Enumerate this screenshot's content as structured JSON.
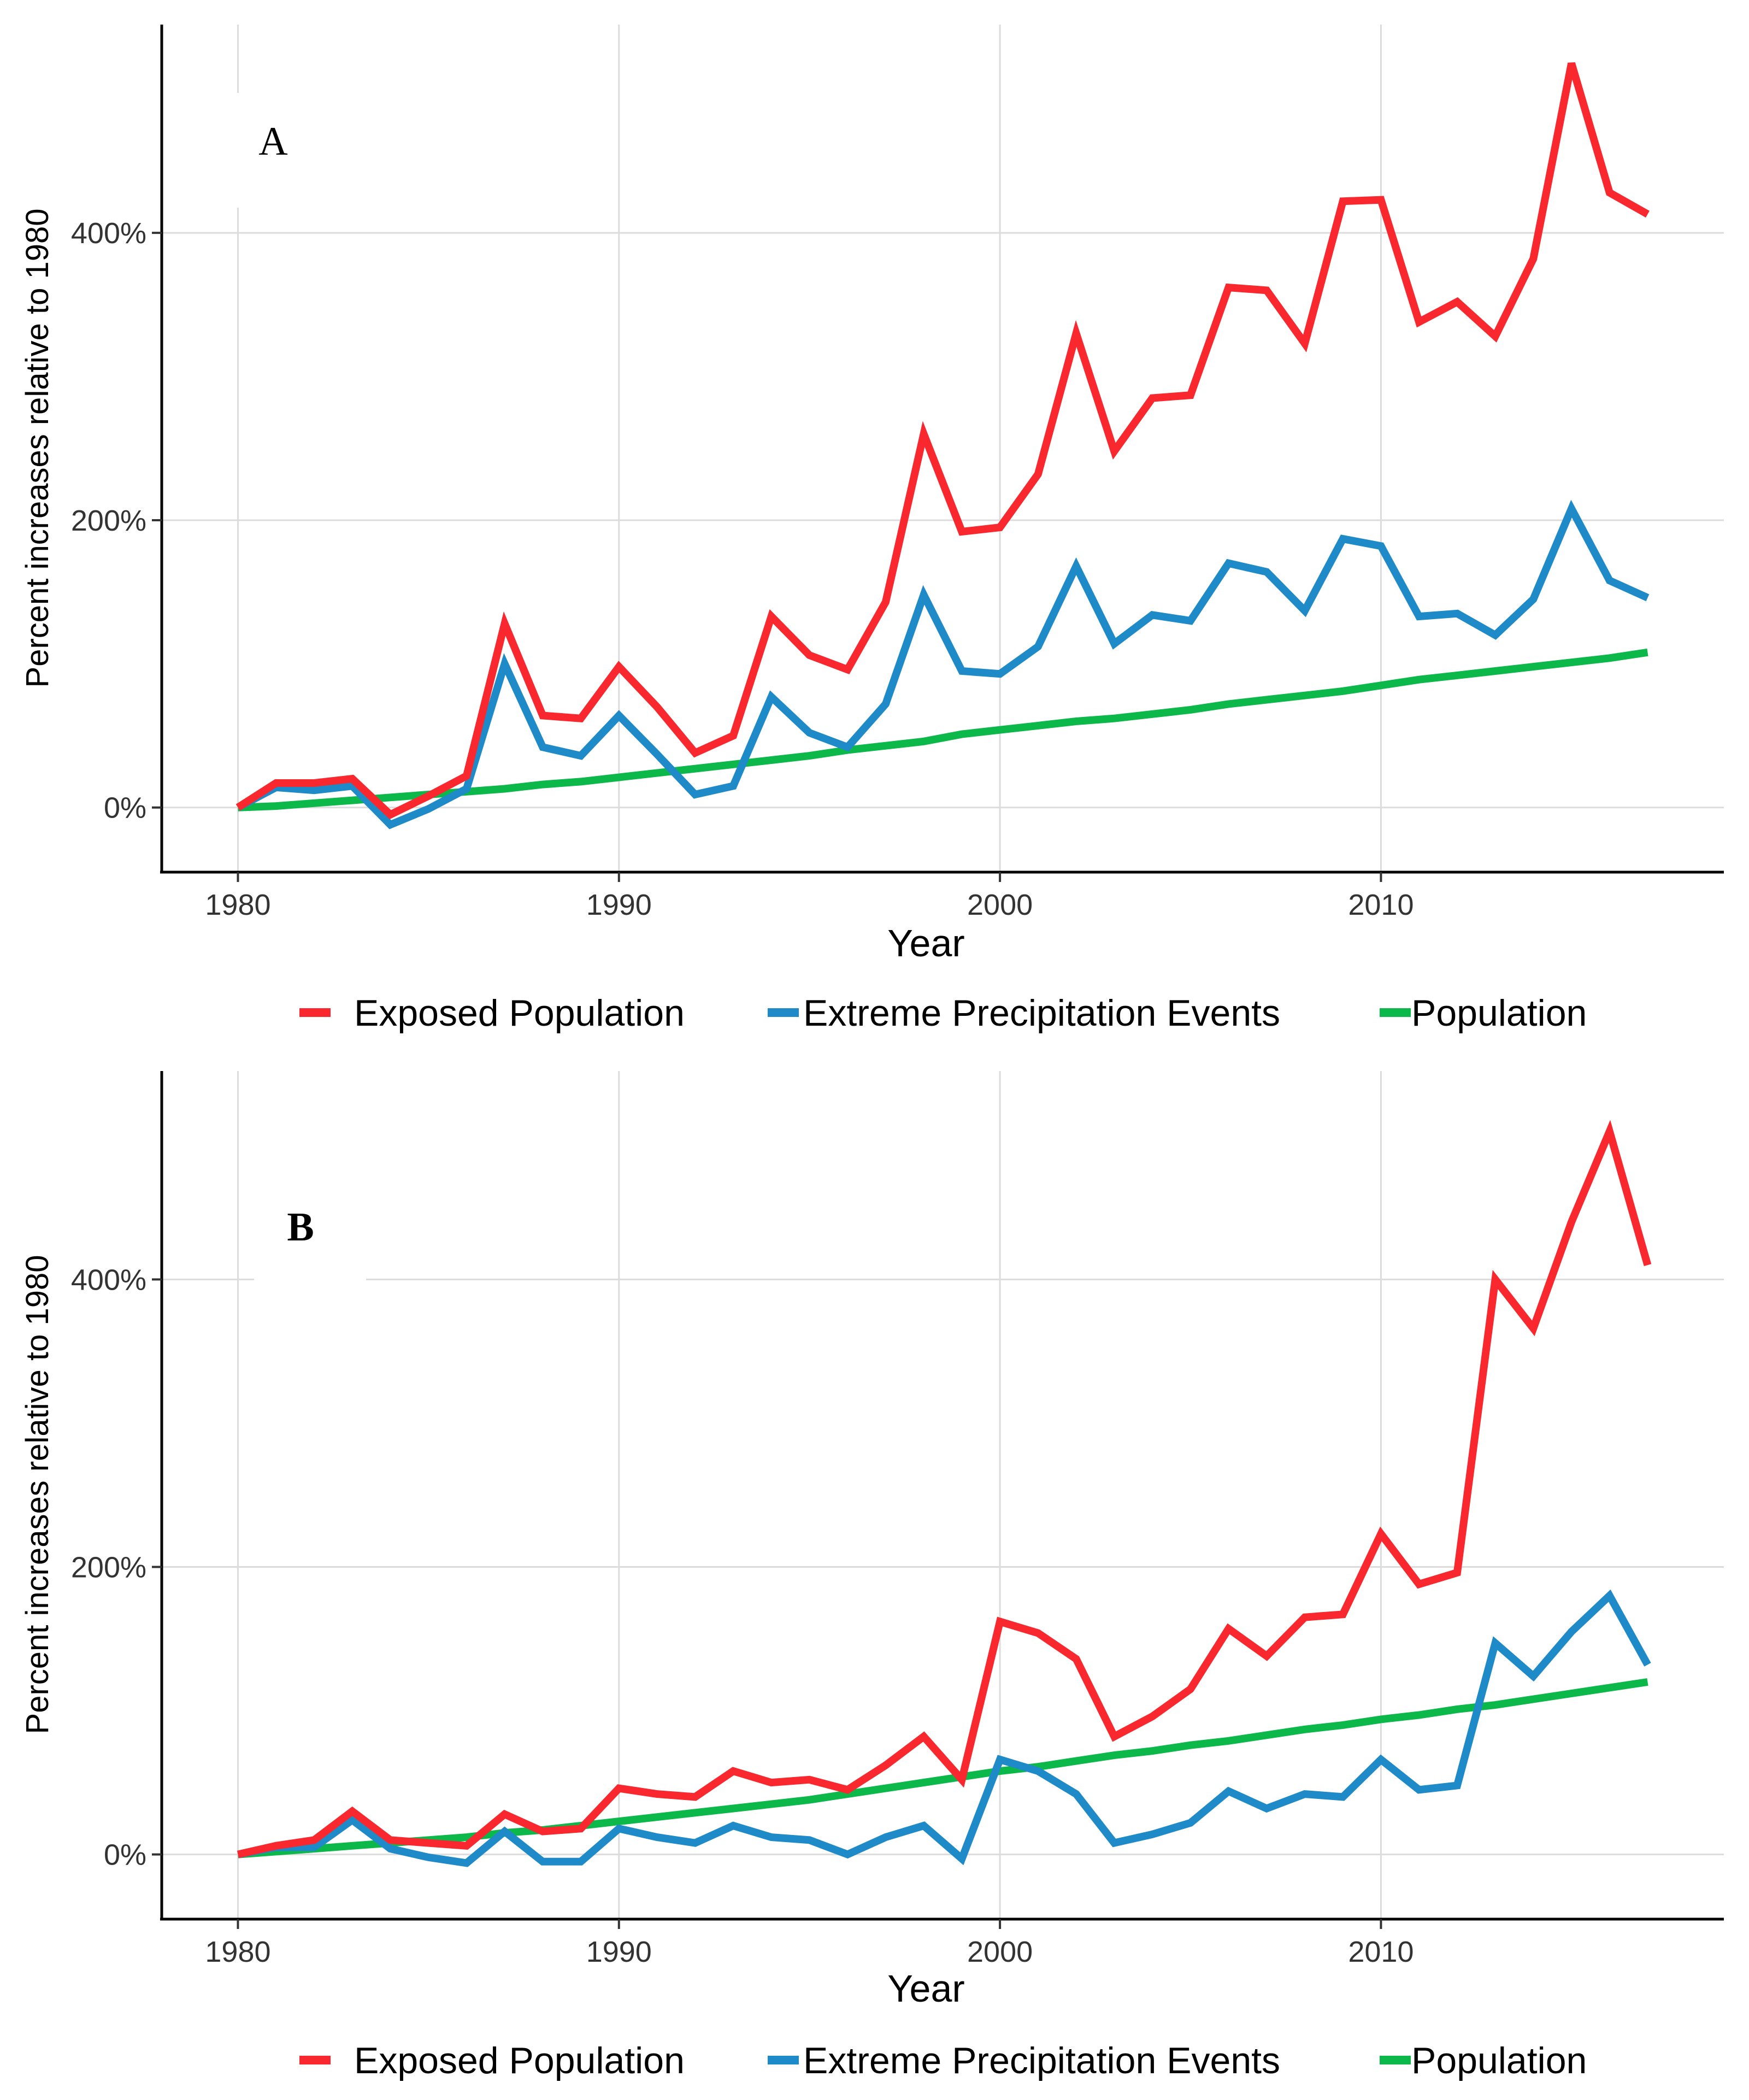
{
  "figure": {
    "legend": [
      {
        "name": "Exposed Population",
        "color": "#F8282E"
      },
      {
        "name": "Extreme Precipitation Events",
        "color": "#1F8AC8"
      },
      {
        "name": "Population",
        "color": "#0DB84B"
      }
    ]
  },
  "chart_data": [
    {
      "type": "line",
      "panel": "A",
      "title": "",
      "xlabel": "Year",
      "ylabel": "Percent increases relative to 1980",
      "xlim": [
        1978,
        2019
      ],
      "ylim": [
        -45,
        545
      ],
      "x_ticks": [
        1980,
        1990,
        2000,
        2010
      ],
      "x_tick_labels": [
        "1980",
        "1990",
        "2000",
        "2010"
      ],
      "y_ticks": [
        0,
        200,
        400
      ],
      "y_tick_labels": [
        "0%",
        "200%",
        "400%"
      ],
      "grid": true,
      "legend_position": "bottom",
      "x": [
        1980,
        1981,
        1982,
        1983,
        1984,
        1985,
        1986,
        1987,
        1988,
        1989,
        1990,
        1991,
        1992,
        1993,
        1994,
        1995,
        1996,
        1997,
        1998,
        1999,
        2000,
        2001,
        2002,
        2003,
        2004,
        2005,
        2006,
        2007,
        2008,
        2009,
        2010,
        2011,
        2012,
        2013,
        2014,
        2015,
        2016,
        2017
      ],
      "series": [
        {
          "name": "Exposed Population",
          "color": "#F8282E",
          "values": [
            0,
            17,
            17,
            20,
            -5,
            8,
            22,
            128,
            64,
            62,
            98,
            70,
            38,
            50,
            133,
            106,
            96,
            143,
            260,
            192,
            195,
            232,
            330,
            248,
            285,
            287,
            362,
            360,
            323,
            422,
            423,
            338,
            352,
            328,
            382,
            518,
            428,
            413
          ]
        },
        {
          "name": "Extreme Precipitation Events",
          "color": "#1F8AC8",
          "values": [
            0,
            14,
            12,
            15,
            -12,
            -1,
            13,
            100,
            42,
            36,
            64,
            37,
            9,
            15,
            77,
            52,
            42,
            72,
            148,
            95,
            93,
            112,
            168,
            114,
            134,
            130,
            170,
            164,
            137,
            187,
            182,
            133,
            135,
            120,
            145,
            208,
            158,
            146
          ]
        },
        {
          "name": "Population",
          "color": "#0DB84B",
          "values": [
            0,
            1,
            3,
            5,
            7,
            9,
            11,
            13,
            16,
            18,
            21,
            24,
            27,
            30,
            33,
            36,
            40,
            43,
            46,
            51,
            54,
            57,
            60,
            62,
            65,
            68,
            72,
            75,
            78,
            81,
            85,
            89,
            92,
            95,
            98,
            101,
            104,
            108
          ]
        }
      ]
    },
    {
      "type": "line",
      "panel": "B",
      "title": "",
      "xlabel": "Year",
      "ylabel": "Percent increases relative to 1980",
      "xlim": [
        1978,
        2019
      ],
      "ylim": [
        -45,
        545
      ],
      "x_ticks": [
        1980,
        1990,
        2000,
        2010
      ],
      "x_tick_labels": [
        "1980",
        "1990",
        "2000",
        "2010"
      ],
      "y_ticks": [
        0,
        200,
        400
      ],
      "y_tick_labels": [
        "0%",
        "200%",
        "400%"
      ],
      "grid": true,
      "legend_position": "bottom",
      "x": [
        1980,
        1981,
        1982,
        1983,
        1984,
        1985,
        1986,
        1987,
        1988,
        1989,
        1990,
        1991,
        1992,
        1993,
        1994,
        1995,
        1996,
        1997,
        1998,
        1999,
        2000,
        2001,
        2002,
        2003,
        2004,
        2005,
        2006,
        2007,
        2008,
        2009,
        2010,
        2011,
        2012,
        2013,
        2014,
        2015,
        2016,
        2017
      ],
      "series": [
        {
          "name": "Exposed Population",
          "color": "#F8282E",
          "values": [
            0,
            6,
            10,
            30,
            10,
            8,
            6,
            28,
            16,
            18,
            46,
            42,
            40,
            58,
            50,
            52,
            45,
            62,
            82,
            52,
            162,
            154,
            136,
            82,
            96,
            115,
            157,
            138,
            165,
            167,
            223,
            188,
            196,
            400,
            366,
            440,
            503,
            410
          ]
        },
        {
          "name": "Extreme Precipitation Events",
          "color": "#1F8AC8",
          "values": [
            0,
            5,
            5,
            24,
            4,
            -2,
            -6,
            16,
            -5,
            -5,
            18,
            12,
            8,
            20,
            12,
            10,
            0,
            12,
            20,
            -3,
            66,
            58,
            42,
            8,
            14,
            22,
            44,
            32,
            42,
            40,
            66,
            45,
            48,
            147,
            124,
            155,
            180,
            132
          ]
        },
        {
          "name": "Population",
          "color": "#0DB84B",
          "values": [
            0,
            2,
            4,
            6,
            8,
            10,
            12,
            15,
            17,
            20,
            23,
            26,
            29,
            32,
            35,
            38,
            42,
            46,
            50,
            54,
            58,
            61,
            65,
            69,
            72,
            76,
            79,
            83,
            87,
            90,
            94,
            97,
            101,
            104,
            108,
            112,
            116,
            120
          ]
        }
      ]
    }
  ]
}
